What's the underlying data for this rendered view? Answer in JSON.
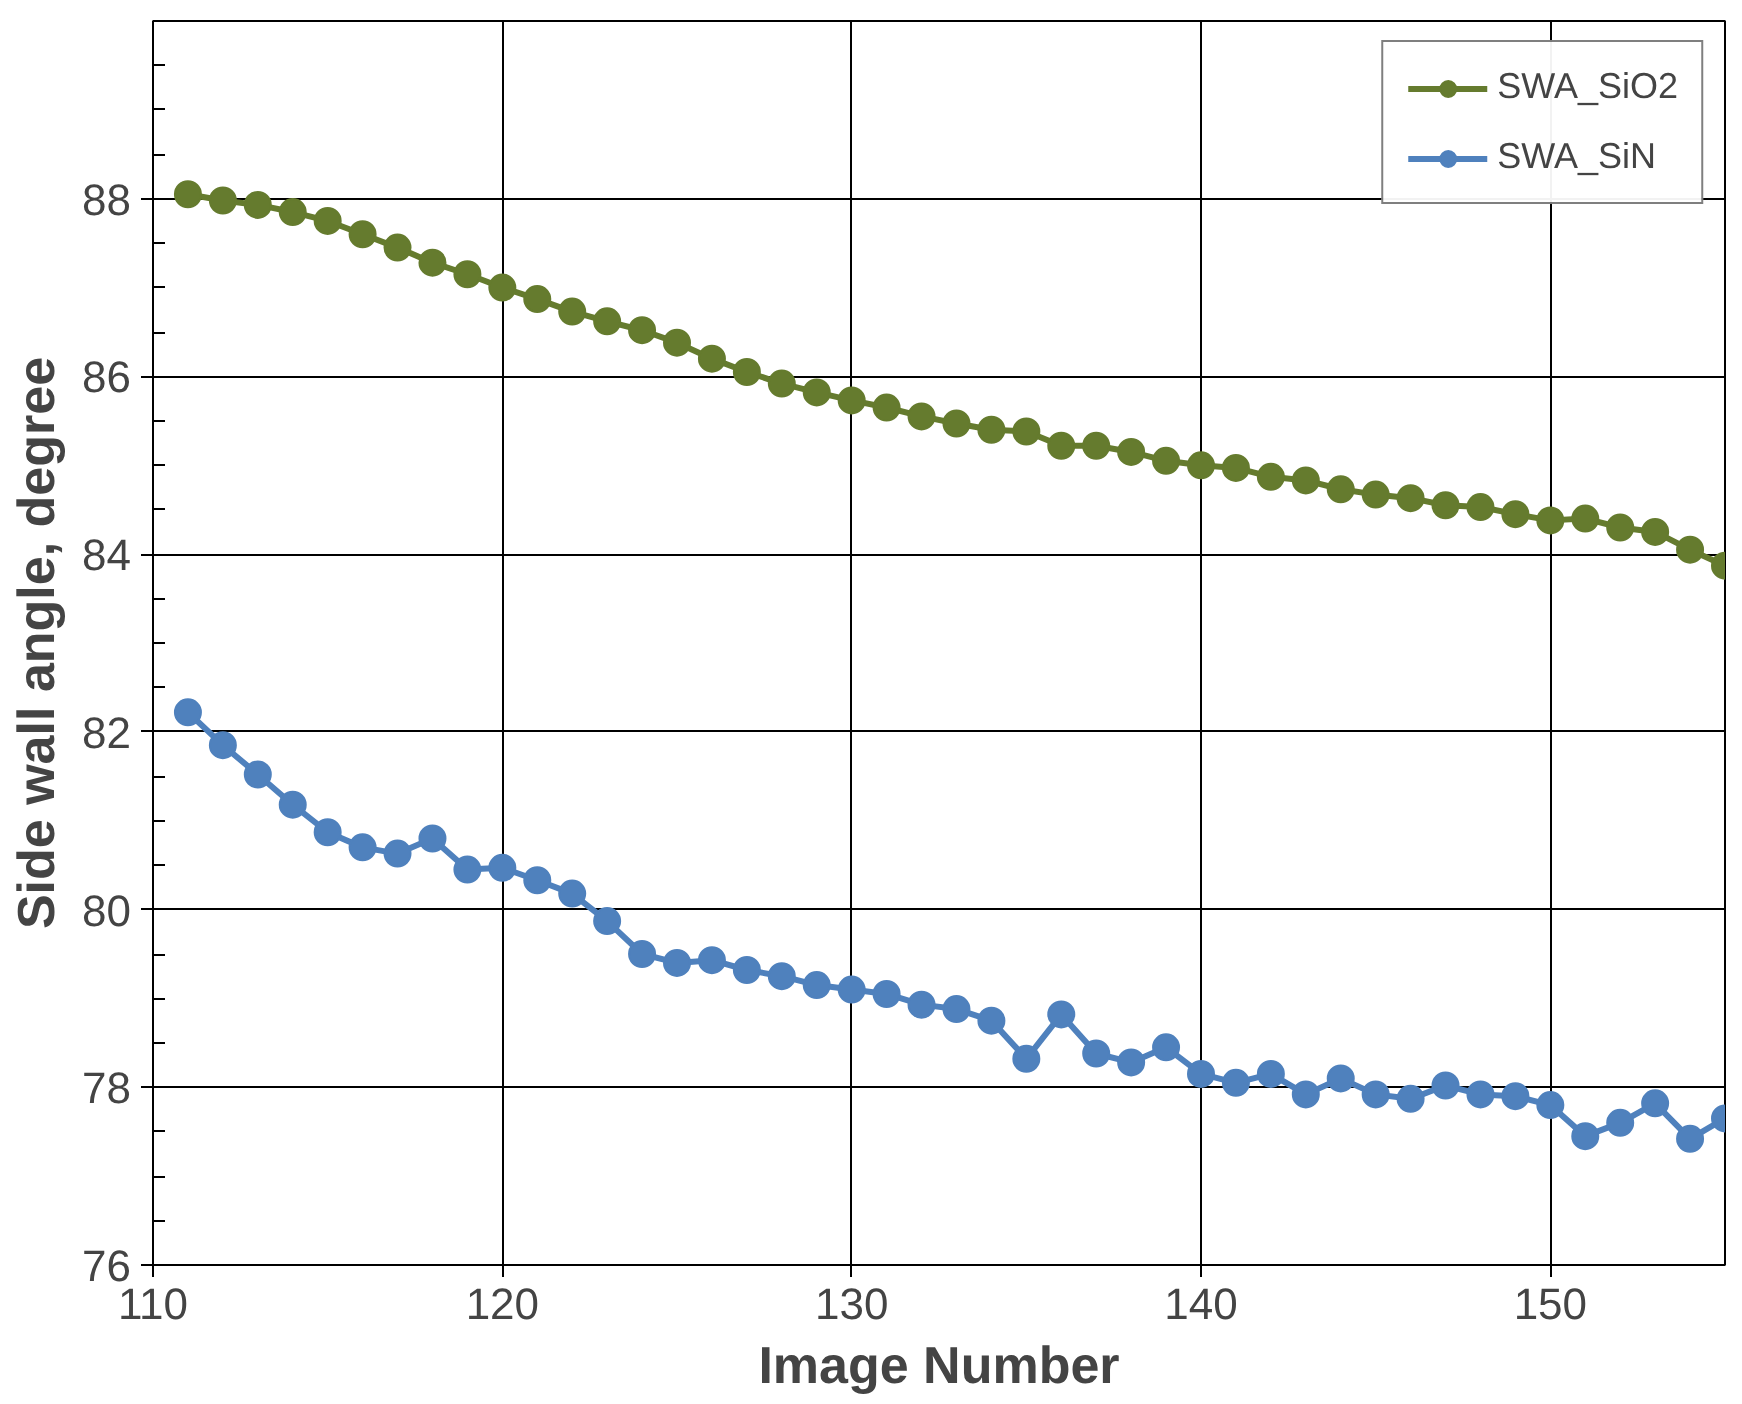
{
  "chart_data": {
    "type": "line",
    "xlabel": "Image Number",
    "ylabel": "Side wall angle, degree",
    "x": [
      111,
      112,
      113,
      114,
      115,
      116,
      117,
      118,
      119,
      120,
      121,
      122,
      123,
      124,
      125,
      126,
      127,
      128,
      129,
      130,
      131,
      132,
      133,
      134,
      135,
      136,
      137,
      138,
      139,
      140,
      141,
      142,
      143,
      144,
      145,
      146,
      147,
      148,
      149,
      150,
      151,
      152,
      153,
      154,
      155
    ],
    "xlim": [
      110,
      155
    ],
    "xticks": [
      110,
      120,
      130,
      140,
      150
    ],
    "ylim": [
      76,
      90
    ],
    "yticks": [
      76,
      78,
      80,
      82,
      84,
      86,
      88
    ],
    "grid": true,
    "legend": "top right",
    "marker": "circle",
    "line_style": "solid",
    "series": [
      {
        "name": "SWA_SiO2",
        "color": "#657b2e",
        "values": [
          88.05,
          87.98,
          87.93,
          87.85,
          87.75,
          87.6,
          87.45,
          87.28,
          87.15,
          87.0,
          86.87,
          86.73,
          86.62,
          86.52,
          86.38,
          86.2,
          86.05,
          85.92,
          85.82,
          85.73,
          85.65,
          85.55,
          85.47,
          85.4,
          85.38,
          85.22,
          85.22,
          85.15,
          85.05,
          85.0,
          84.97,
          84.87,
          84.83,
          84.73,
          84.67,
          84.63,
          84.55,
          84.53,
          84.45,
          84.38,
          84.4,
          84.3,
          84.25,
          84.05,
          83.87
        ]
      },
      {
        "name": "SWA_SiN",
        "color": "#4f81bd",
        "values": [
          82.22,
          81.85,
          81.52,
          81.18,
          80.87,
          80.7,
          80.63,
          80.8,
          80.45,
          80.47,
          80.33,
          80.18,
          79.87,
          79.5,
          79.4,
          79.43,
          79.32,
          79.25,
          79.15,
          79.1,
          79.05,
          78.93,
          78.88,
          78.75,
          78.32,
          78.82,
          78.38,
          78.28,
          78.45,
          78.15,
          78.05,
          78.15,
          77.92,
          78.1,
          77.92,
          77.87,
          78.02,
          77.92,
          77.9,
          77.8,
          77.45,
          77.6,
          77.82,
          77.42,
          77.65
        ]
      }
    ]
  }
}
